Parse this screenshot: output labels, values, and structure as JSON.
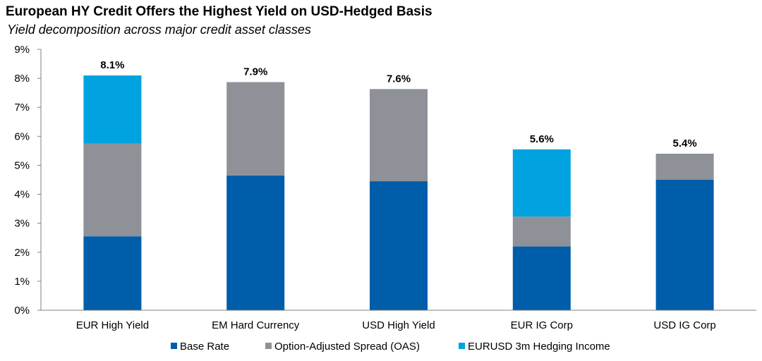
{
  "title": "European HY Credit Offers the Highest Yield on USD-Hedged Basis",
  "subtitle": "Yield decomposition across major credit asset classes",
  "colors": {
    "base_rate": "#005DAA",
    "oas": "#8E9198",
    "hedging": "#00A3E0",
    "axis": "#808080"
  },
  "chart_data": {
    "type": "bar",
    "stacked": true,
    "title": "European HY Credit Offers the Highest Yield on USD-Hedged Basis",
    "subtitle": "Yield decomposition across major credit asset classes",
    "categories": [
      "EUR High Yield",
      "EM Hard Currency",
      "USD High Yield",
      "EUR IG Corp",
      "USD IG Corp"
    ],
    "series": [
      {
        "name": "Base Rate",
        "values": [
          2.55,
          4.65,
          4.45,
          2.2,
          4.5
        ]
      },
      {
        "name": "Option-Adjusted Spread (OAS)",
        "values": [
          3.2,
          3.22,
          3.18,
          1.03,
          0.9
        ]
      },
      {
        "name": "EURUSD 3m Hedging Income",
        "values": [
          2.35,
          0,
          0,
          2.32,
          0
        ]
      }
    ],
    "totals": [
      "8.1%",
      "7.9%",
      "7.6%",
      "5.6%",
      "5.4%"
    ],
    "yticks": [
      "0%",
      "1%",
      "2%",
      "3%",
      "4%",
      "5%",
      "6%",
      "7%",
      "8%",
      "9%"
    ],
    "ylim": [
      0,
      9
    ],
    "xlabel": "",
    "ylabel": "",
    "legend_position": "bottom",
    "grid": false
  }
}
